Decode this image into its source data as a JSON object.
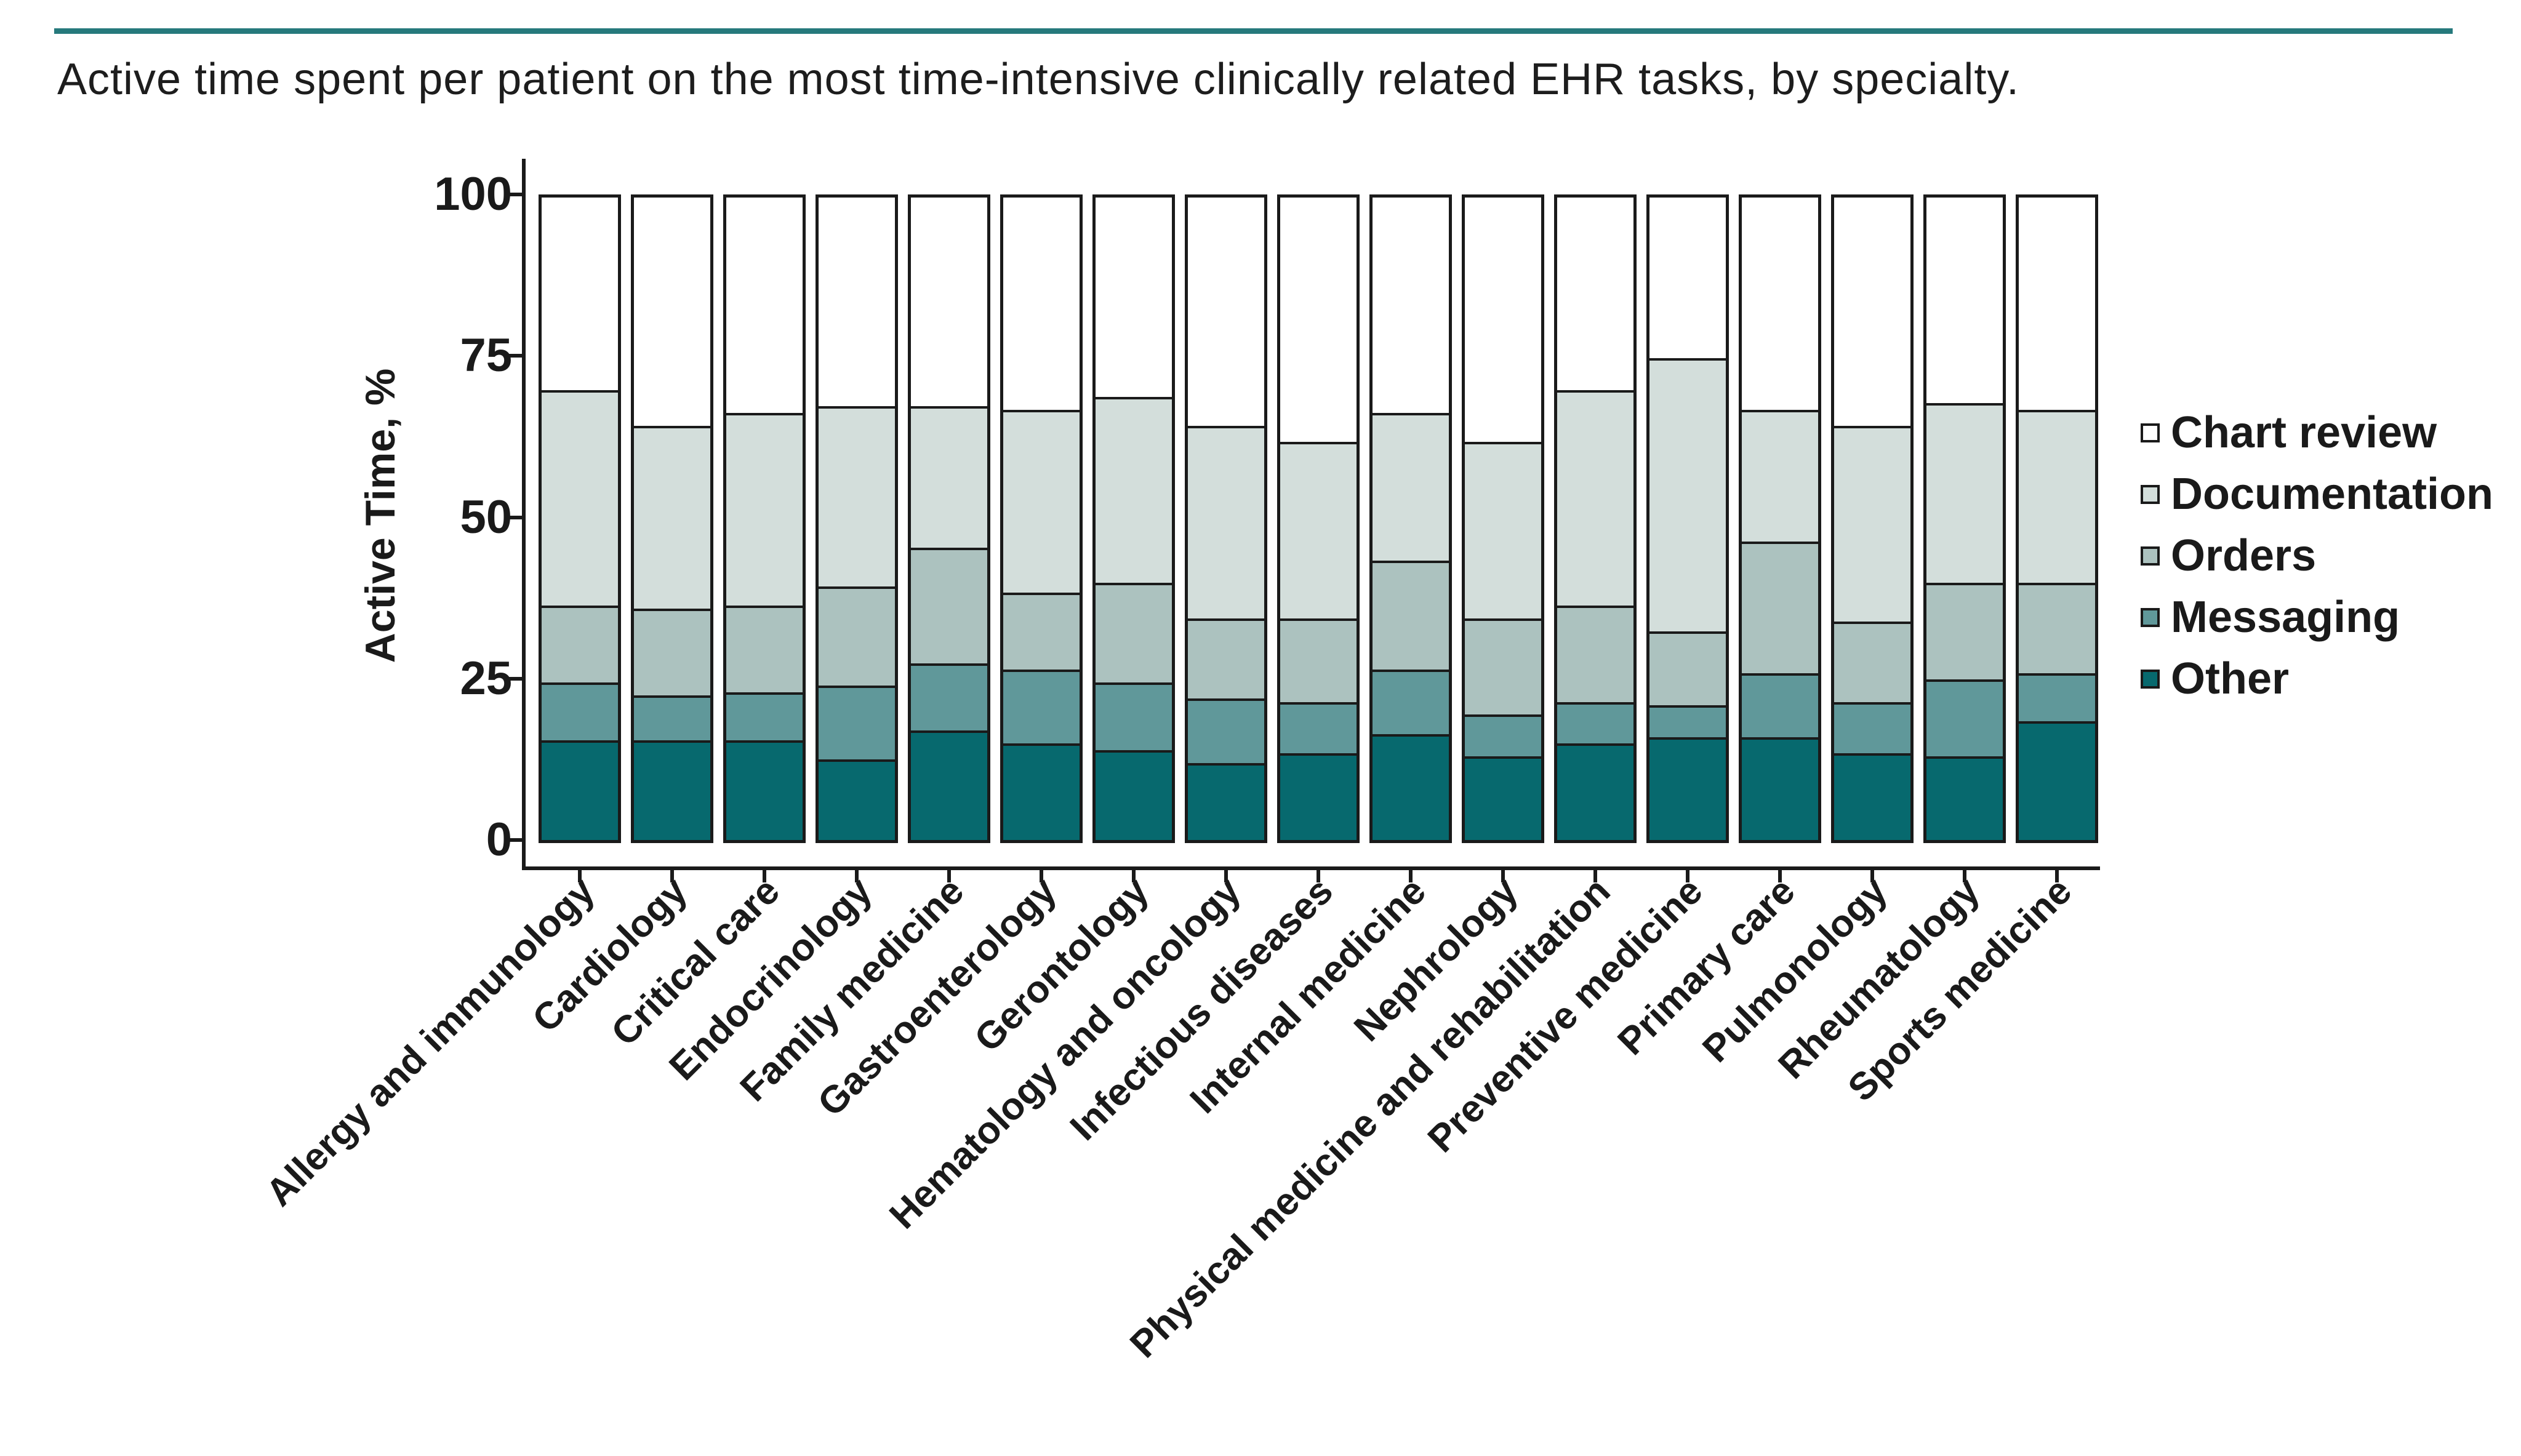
{
  "title": "Active time spent per patient on the most time-intensive clinically related EHR tasks, by specialty.",
  "colors": {
    "accent_rule": "#26797C",
    "axis_and_text": "#1A1A1A",
    "chart_review": "#FFFFFF",
    "documentation": "#D3DEDB",
    "orders": "#ACC2BF",
    "messaging": "#60989A",
    "other": "#07696E"
  },
  "chart_data": {
    "type": "bar",
    "stacked": true,
    "title": "Active time spent per patient on the most time-intensive clinically related EHR tasks, by specialty.",
    "xlabel": "",
    "ylabel": "Active Time, %",
    "ylim": [
      0,
      100
    ],
    "yticks": [
      0,
      25,
      50,
      75,
      100
    ],
    "grid": false,
    "legend_position": "right",
    "legend_order_top_to_bottom": [
      "Chart review",
      "Documentation",
      "Orders",
      "Messaging",
      "Other"
    ],
    "categories": [
      "Allergy and immunology",
      "Cardiology",
      "Critical care",
      "Endocrinology",
      "Family medicine",
      "Gastroenterology",
      "Gerontology",
      "Hematology and oncology",
      "Infectious diseases",
      "Internal medicine",
      "Nephrology",
      "Physical medicine and rehabilitation",
      "Preventive medicine",
      "Primary care",
      "Pulmonology",
      "Rheumatology",
      "Sports medicine"
    ],
    "series": [
      {
        "name": "Other",
        "color": "#07696E",
        "values": [
          15.5,
          15.5,
          15.5,
          12.5,
          17,
          15,
          14,
          12,
          13.5,
          16.5,
          13,
          15,
          16,
          16,
          13.5,
          13,
          18.5
        ]
      },
      {
        "name": "Messaging",
        "color": "#60989A",
        "values": [
          9,
          7,
          7.5,
          11.5,
          10.5,
          11.5,
          10.5,
          10,
          8,
          10,
          6.5,
          6.5,
          5,
          10,
          8,
          12,
          7.5
        ]
      },
      {
        "name": "Orders",
        "color": "#ACC2BF",
        "values": [
          12,
          13.5,
          13.5,
          15.5,
          18,
          12,
          15.5,
          12.5,
          13,
          17,
          15,
          15,
          11.5,
          20.5,
          12.5,
          15,
          14
        ]
      },
      {
        "name": "Documentation",
        "color": "#D3DEDB",
        "values": [
          33.5,
          28.5,
          30,
          28,
          22,
          28.5,
          29,
          30,
          27.5,
          23,
          27.5,
          33.5,
          42.5,
          20.5,
          30.5,
          28,
          27
        ]
      },
      {
        "name": "Chart review",
        "color": "#FFFFFF",
        "values": [
          30,
          35.5,
          33.5,
          32.5,
          32.5,
          33,
          31,
          35.5,
          38,
          33.5,
          38,
          30,
          25,
          33,
          35.5,
          32,
          33
        ]
      }
    ]
  }
}
